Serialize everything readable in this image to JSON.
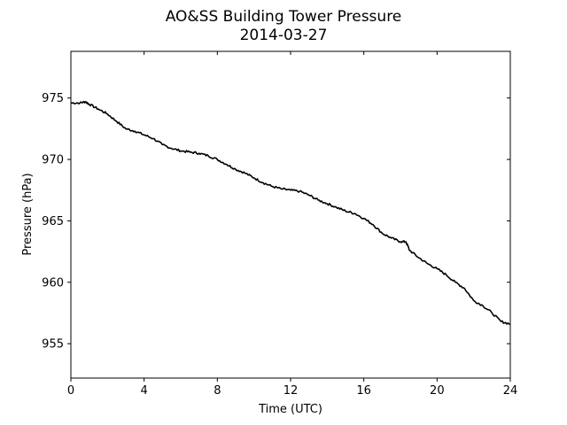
{
  "chart_data": {
    "type": "line",
    "title": "AO&SS Building Tower Pressure",
    "subtitle": "2014-03-27",
    "xlabel": "Time (UTC)",
    "ylabel": "Pressure (hPa)",
    "xlim": [
      0,
      24
    ],
    "ylim": [
      952.2,
      978.8
    ],
    "xticks": [
      0,
      4,
      8,
      12,
      16,
      20,
      24
    ],
    "xtick_labels": [
      "0",
      "4",
      "8",
      "12",
      "16",
      "20",
      "24"
    ],
    "yticks": [
      955,
      960,
      965,
      970,
      975
    ],
    "ytick_labels": [
      "955",
      "960",
      "965",
      "970",
      "975"
    ],
    "grid": false,
    "legend": "none",
    "line_color": "#000000",
    "series": [
      {
        "x": [
          0,
          0.5,
          0.8,
          1.0,
          1.5,
          2.0,
          2.5,
          3.0,
          3.5,
          4.0,
          4.5,
          5.0,
          5.5,
          6.0,
          6.5,
          7.0,
          7.5,
          8.0,
          8.5,
          9.0,
          9.5,
          10.0,
          10.5,
          11.0,
          11.5,
          12.0,
          12.5,
          13.0,
          13.5,
          14.0,
          14.5,
          15.0,
          15.5,
          16.0,
          16.5,
          17.0,
          17.5,
          18.0,
          18.3,
          18.5,
          19.0,
          19.5,
          20.0,
          20.5,
          21.0,
          21.5,
          22.0,
          22.5,
          23.0,
          23.5,
          24.0
        ],
        "y": [
          974.6,
          974.6,
          974.7,
          974.5,
          974.1,
          973.7,
          973.1,
          972.5,
          972.3,
          972.0,
          971.7,
          971.2,
          970.9,
          970.7,
          970.6,
          970.5,
          970.3,
          970.0,
          969.6,
          969.2,
          968.9,
          968.5,
          968.1,
          967.8,
          967.6,
          967.5,
          967.4,
          967.1,
          966.7,
          966.4,
          966.1,
          965.8,
          965.6,
          965.2,
          964.7,
          964.0,
          963.6,
          963.3,
          963.3,
          962.6,
          962.0,
          961.5,
          961.1,
          960.6,
          960.0,
          959.5,
          958.5,
          958.1,
          957.5,
          956.8,
          956.6
        ]
      }
    ]
  }
}
